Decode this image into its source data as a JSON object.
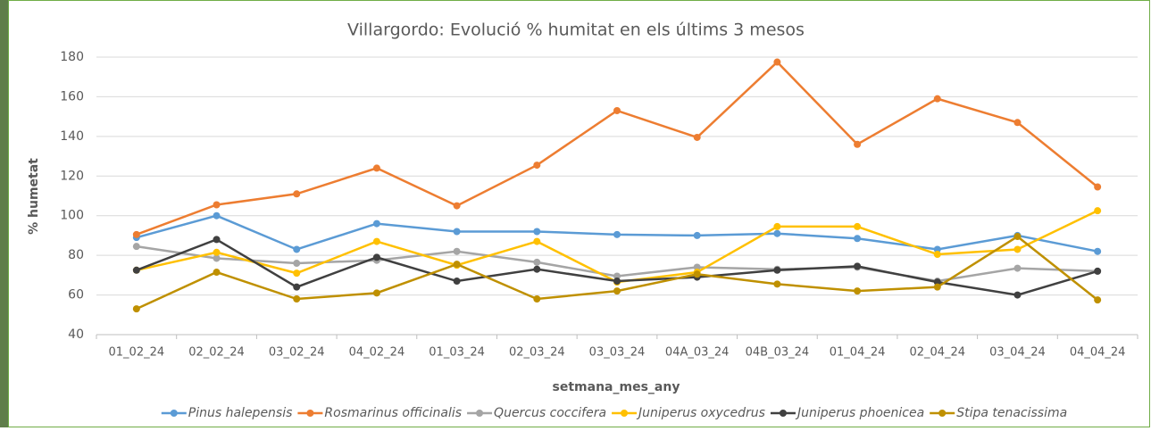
{
  "chart_data": {
    "type": "line",
    "title": "Villargordo: Evolució % humitat en els últims 3 mesos",
    "y_label": "% humetat",
    "x_label": "setmana_mes_any",
    "categories": [
      "01_02_24",
      "02_02_24",
      "03_02_24",
      "04_02_24",
      "01_03_24",
      "02_03_24",
      "03_03_24",
      "04A_03_24",
      "04B_03_24",
      "01_04_24",
      "02_04_24",
      "03_04_24",
      "04_04_24"
    ],
    "ylim": [
      40,
      180
    ],
    "yticks": [
      40,
      60,
      80,
      100,
      120,
      140,
      160,
      180
    ],
    "grid": true,
    "legend": "bottom",
    "series": [
      {
        "name": "Pinus halepensis",
        "color": "#5b9bd5",
        "values": [
          89,
          100,
          83,
          96,
          92,
          92,
          90.5,
          90,
          91,
          88.5,
          83,
          90,
          82
        ]
      },
      {
        "name": "Rosmarinus officinalis",
        "color": "#ed7d31",
        "values": [
          90.5,
          105.5,
          111,
          124,
          105,
          125.5,
          153,
          139.5,
          177.5,
          136,
          159,
          147,
          114.5
        ]
      },
      {
        "name": "Quercus coccifera",
        "color": "#a5a5a5",
        "values": [
          84.5,
          78.5,
          76,
          77.5,
          82,
          76.5,
          69.5,
          74,
          73,
          74,
          67,
          73.5,
          72
        ]
      },
      {
        "name": "Juniperus oxycedrus",
        "color": "#ffc000",
        "values": [
          72.5,
          81.5,
          71,
          87,
          75,
          87,
          66.5,
          71.5,
          94.5,
          94.5,
          80.5,
          83,
          102.5
        ]
      },
      {
        "name": "Juniperus phoenicea",
        "color": "#404040",
        "values": [
          72.5,
          88,
          64,
          79,
          67,
          73,
          67,
          69,
          72.5,
          74.5,
          66.5,
          60,
          72
        ]
      },
      {
        "name": "Stipa tenacissima",
        "color": "#bf9000",
        "values": [
          53,
          71.5,
          58,
          61,
          75.5,
          58,
          62,
          70.5,
          65.5,
          62,
          64,
          89.5,
          57.5
        ]
      }
    ]
  }
}
